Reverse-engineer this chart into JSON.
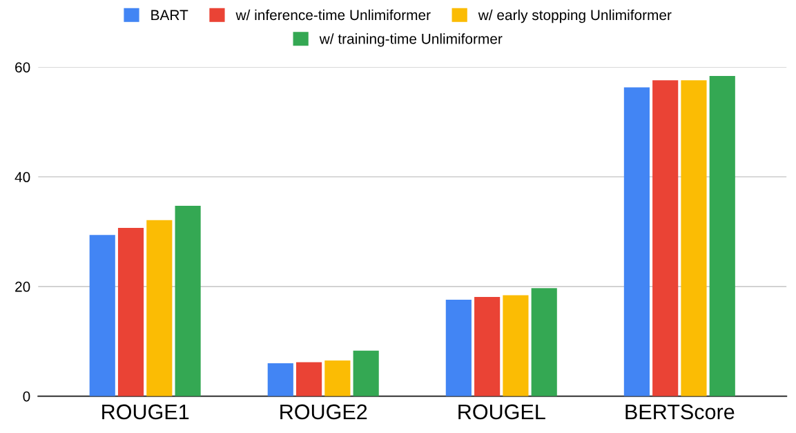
{
  "chart_data": {
    "type": "bar",
    "categories": [
      "ROUGE1",
      "ROUGE2",
      "ROUGEL",
      "BERTScore"
    ],
    "series": [
      {
        "name": "BART",
        "color": "#4285f4",
        "values": [
          29.4,
          6.0,
          17.6,
          56.3
        ]
      },
      {
        "name": "w/ inference-time Unlimiformer",
        "color": "#ea4335",
        "values": [
          30.7,
          6.2,
          18.1,
          57.6
        ]
      },
      {
        "name": "w/ early stopping Unlimiformer",
        "color": "#fbbc04",
        "values": [
          32.1,
          6.5,
          18.4,
          57.6
        ]
      },
      {
        "name": "w/ training-time Unlimiformer",
        "color": "#34a853",
        "values": [
          34.7,
          8.3,
          19.7,
          58.4
        ]
      }
    ],
    "ylim": [
      0,
      60
    ],
    "yticks": [
      0,
      20,
      40,
      60
    ],
    "grid": "y",
    "legend": "top"
  }
}
